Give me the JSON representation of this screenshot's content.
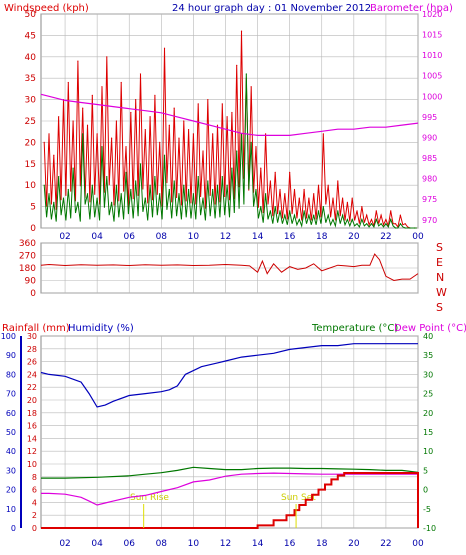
{
  "header": {
    "left_title": "Windspeed (kph)",
    "center_title": "24 hour graph day : 01 November 2012",
    "right_title": "Barometer (hpa)"
  },
  "panel_bottom": {
    "rainfall_label": "Rainfall (mm)",
    "humidity_label": "Humidity (%)",
    "temperature_label": "Temperature (°C)",
    "dewpoint_label": "Dew Point (°C)",
    "sunrise_label": "Sun Rise",
    "sunset_label": "Sun Set"
  },
  "x_ticks": [
    "02",
    "04",
    "06",
    "08",
    "10",
    "12",
    "14",
    "16",
    "18",
    "20",
    "22",
    "00"
  ],
  "colors": {
    "windspeed": "#dd0000",
    "gust": "#dd0000",
    "avg_wind": "#007700",
    "barometer": "#dd00dd",
    "direction": "#cc0000",
    "rainfall": "#dd0000",
    "humidity": "#0000bb",
    "temperature": "#007700",
    "dewpoint": "#dd00dd",
    "sun_marker": "#dddd00",
    "grid": "#b8b8b8",
    "border": "#888888"
  },
  "chart_data": [
    {
      "type": "line",
      "id": "wind_baro",
      "title": "24 hour graph day : 01 November 2012",
      "left_axis": {
        "label": "Windspeed (kph)",
        "range": [
          0,
          50
        ],
        "ticks": [
          "0",
          "5",
          "10",
          "15",
          "20",
          "25",
          "30",
          "35",
          "40",
          "45",
          "50"
        ]
      },
      "right_axis": {
        "label": "Barometer (hpa)",
        "range": [
          968,
          1020
        ],
        "ticks": [
          "970",
          "975",
          "980",
          "985",
          "990",
          "995",
          "1000",
          "1005",
          "1010",
          "1015",
          "1020"
        ]
      },
      "x_range_hours": [
        0.5,
        24
      ],
      "series": [
        {
          "name": "Windspeed (kph)",
          "axis": "left",
          "kind": "spiky",
          "x": [
            0.7,
            1.0,
            1.3,
            1.6,
            1.9,
            2.2,
            2.5,
            2.8,
            3.1,
            3.4,
            3.7,
            4.0,
            4.3,
            4.6,
            4.9,
            5.2,
            5.5,
            5.8,
            6.1,
            6.4,
            6.7,
            7.0,
            7.3,
            7.6,
            7.9,
            8.2,
            8.5,
            8.8,
            9.1,
            9.4,
            9.7,
            10.0,
            10.3,
            10.6,
            10.9,
            11.2,
            11.5,
            11.8,
            12.1,
            12.4,
            12.7,
            13.0,
            13.3,
            13.6,
            13.9,
            14.2,
            14.5,
            14.8,
            15.1,
            15.4,
            15.7,
            16.0,
            16.3,
            16.6,
            16.9,
            17.2,
            17.5,
            17.8,
            18.1,
            18.4,
            18.7,
            19.0,
            19.3,
            19.6,
            19.9,
            20.2,
            20.5,
            20.8,
            21.1,
            21.4,
            21.7,
            22.0,
            22.3,
            22.6,
            22.9,
            23.2,
            23.5,
            23.8
          ],
          "y": [
            20,
            22,
            17,
            26,
            30,
            34,
            25,
            39,
            28,
            24,
            31,
            22,
            33,
            40,
            21,
            25,
            34,
            19,
            27,
            30,
            36,
            23,
            26,
            31,
            20,
            42,
            24,
            28,
            21,
            25,
            23,
            22,
            29,
            18,
            30,
            22,
            24,
            29,
            26,
            27,
            38,
            46,
            35,
            33,
            19,
            14,
            22,
            11,
            13,
            9,
            8,
            13,
            9,
            7,
            9,
            7,
            8,
            10,
            22,
            10,
            7,
            11,
            7,
            6,
            7,
            4,
            5,
            3,
            2,
            4,
            3,
            2,
            4,
            1,
            3,
            1,
            0,
            0
          ]
        },
        {
          "name": "Average wind",
          "axis": "left",
          "kind": "spiky",
          "x": [
            0.7,
            1.0,
            1.3,
            1.6,
            1.9,
            2.2,
            2.5,
            2.8,
            3.1,
            3.4,
            3.7,
            4.0,
            4.3,
            4.6,
            4.9,
            5.2,
            5.5,
            5.8,
            6.1,
            6.4,
            6.7,
            7.0,
            7.3,
            7.6,
            7.9,
            8.2,
            8.5,
            8.8,
            9.1,
            9.4,
            9.7,
            10.0,
            10.3,
            10.6,
            10.9,
            11.2,
            11.5,
            11.8,
            12.1,
            12.4,
            12.7,
            13.0,
            13.3,
            13.6,
            13.9,
            14.2,
            14.5,
            14.8,
            15.1,
            15.4,
            15.7,
            16.0,
            16.3,
            16.6,
            16.9,
            17.2,
            17.5,
            17.8,
            18.1,
            18.4,
            18.7,
            19.0,
            19.3,
            19.6,
            19.9,
            20.2,
            20.5,
            20.8,
            21.1,
            21.4,
            21.7,
            22.0,
            22.3,
            22.6,
            22.9,
            23.2,
            23.5,
            23.8
          ],
          "y": [
            10,
            8,
            6,
            12,
            7,
            9,
            14,
            6,
            22,
            8,
            10,
            7,
            19,
            12,
            6,
            10,
            8,
            13,
            9,
            11,
            15,
            7,
            10,
            12,
            8,
            17,
            9,
            11,
            8,
            10,
            9,
            8,
            12,
            7,
            11,
            9,
            10,
            12,
            10,
            14,
            18,
            22,
            36,
            20,
            9,
            5,
            8,
            4,
            5,
            4,
            3,
            4,
            3,
            2,
            4,
            3,
            3,
            4,
            5,
            3,
            2,
            4,
            3,
            2,
            2,
            1,
            2,
            1,
            1,
            2,
            1,
            1,
            2,
            0,
            1,
            0,
            0,
            0
          ]
        },
        {
          "name": "Barometer (hpa)",
          "axis": "right",
          "kind": "smooth",
          "x": [
            0.5,
            1,
            2,
            3,
            4,
            5,
            6,
            7,
            8,
            9,
            10,
            11,
            12,
            13,
            14,
            15,
            16,
            17,
            18,
            19,
            20,
            21,
            22,
            23,
            24
          ],
          "y": [
            1000.5,
            1000,
            999,
            998.5,
            998,
            997.5,
            997,
            996.5,
            996,
            995,
            994,
            993,
            992,
            991,
            990.5,
            990.5,
            990.5,
            991,
            991.5,
            992,
            992,
            992.5,
            992.5,
            993,
            993.5
          ]
        }
      ]
    },
    {
      "type": "line",
      "id": "wind_direction",
      "left_axis": {
        "range": [
          0,
          360
        ],
        "ticks": [
          "0",
          "90",
          "180",
          "270",
          "360"
        ]
      },
      "right_axis": {
        "ticks": [
          "S",
          "E",
          "N",
          "W",
          "S"
        ]
      },
      "x_range_hours": [
        0.5,
        24
      ],
      "series": [
        {
          "name": "Wind direction",
          "kind": "jagged",
          "x": [
            0.5,
            1,
            2,
            3,
            4,
            5,
            6,
            7,
            8,
            9,
            10,
            11,
            12,
            13,
            13.5,
            14,
            14.3,
            14.6,
            15,
            15.5,
            16,
            16.5,
            17,
            17.5,
            18,
            18.5,
            19,
            19.5,
            20,
            20.5,
            21,
            21.3,
            21.6,
            22,
            22.5,
            23,
            23.5,
            24
          ],
          "y": [
            200,
            205,
            198,
            203,
            200,
            202,
            198,
            204,
            200,
            202,
            198,
            200,
            205,
            200,
            195,
            150,
            230,
            140,
            210,
            150,
            190,
            170,
            180,
            210,
            160,
            180,
            200,
            195,
            190,
            200,
            200,
            280,
            240,
            120,
            90,
            100,
            100,
            140
          ]
        }
      ]
    },
    {
      "type": "line",
      "id": "rain_humidity_temp",
      "rainfall_axis": {
        "label": "Rainfall (mm)",
        "range": [
          0,
          30
        ],
        "ticks": [
          "0",
          "2",
          "4",
          "6",
          "8",
          "10",
          "12",
          "14",
          "16",
          "18",
          "20",
          "22",
          "24",
          "26",
          "28",
          "30"
        ]
      },
      "humidity_axis": {
        "label": "Humidity (%)",
        "range": [
          0,
          100
        ],
        "ticks": [
          "0",
          "10",
          "20",
          "30",
          "40",
          "50",
          "60",
          "70",
          "80",
          "90",
          "100"
        ]
      },
      "temperature_axis": {
        "label": "Temperature (°C)",
        "range": [
          -10,
          40
        ],
        "ticks": [
          "-10",
          "-5",
          "0",
          "5",
          "10",
          "15",
          "20",
          "25",
          "30",
          "35",
          "40"
        ]
      },
      "x_range_hours": [
        0.5,
        24
      ],
      "annotations": [
        {
          "text": "Sun Rise",
          "x": 6.9
        },
        {
          "text": "Sun Set",
          "x": 16.4
        }
      ],
      "series": [
        {
          "name": "Humidity (%)",
          "axis": "humidity",
          "x": [
            0.5,
            1,
            2,
            3,
            3.5,
            4,
            4.5,
            5,
            6,
            7,
            8,
            8.5,
            9,
            9.5,
            10,
            10.5,
            11,
            11.5,
            12,
            13,
            14,
            15,
            16,
            17,
            18,
            19,
            20,
            21,
            22,
            23,
            24
          ],
          "y": [
            81,
            80,
            79,
            76,
            70,
            63,
            64,
            66,
            69,
            70,
            71,
            72,
            74,
            80,
            82,
            84,
            85,
            86,
            87,
            89,
            90,
            91,
            93,
            94,
            95,
            95,
            96,
            96,
            96,
            96,
            96
          ]
        },
        {
          "name": "Temperature (°C)",
          "axis": "temperature",
          "x": [
            0.5,
            2,
            4,
            6,
            7,
            8,
            9,
            10,
            11,
            12,
            13,
            14,
            15,
            16,
            17,
            18,
            19,
            20,
            21,
            22,
            23,
            24
          ],
          "y": [
            3,
            3,
            3.2,
            3.6,
            4,
            4.4,
            5,
            5.8,
            5.5,
            5.2,
            5.2,
            5.5,
            5.6,
            5.6,
            5.5,
            5.5,
            5.4,
            5.3,
            5.2,
            5,
            5,
            4.5
          ]
        },
        {
          "name": "Dew Point (°C)",
          "axis": "temperature",
          "x": [
            0.5,
            1,
            2,
            3,
            3.5,
            4,
            4.5,
            5,
            6,
            7,
            8,
            9,
            10,
            11,
            12,
            13,
            14,
            15,
            16,
            17,
            18,
            19,
            20,
            21,
            22,
            23,
            24
          ],
          "y": [
            -1,
            -1,
            -1.2,
            -2,
            -3,
            -4,
            -3.5,
            -3,
            -2,
            -1.5,
            -0.5,
            0.5,
            2,
            2.5,
            3.5,
            4,
            4.2,
            4.3,
            4.2,
            4.1,
            4,
            4,
            4,
            4,
            4,
            4,
            4
          ]
        },
        {
          "name": "Rainfall (mm)",
          "axis": "rainfall",
          "step": true,
          "x": [
            0.5,
            13,
            14,
            15,
            15.8,
            16.3,
            16.6,
            17.0,
            17.4,
            17.8,
            18.2,
            18.6,
            19.0,
            19.4,
            20,
            21,
            22,
            23,
            23.9,
            24
          ],
          "y": [
            0,
            0,
            0.4,
            1.2,
            2.0,
            2.8,
            3.6,
            4.4,
            5.2,
            6.0,
            6.8,
            7.6,
            8.2,
            8.6,
            8.6,
            8.6,
            8.6,
            8.6,
            8.6,
            0
          ]
        }
      ]
    }
  ]
}
